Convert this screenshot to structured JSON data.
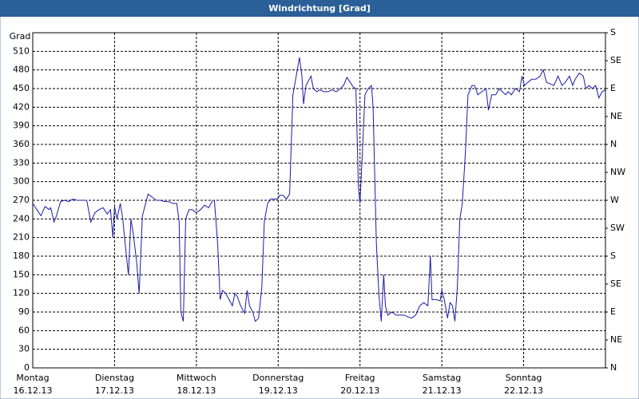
{
  "chart_data": {
    "type": "line",
    "title": "Windrichtung [Grad]",
    "ylabel": "Grad",
    "xlim": [
      0,
      7
    ],
    "xticks": [
      {
        "value": 0,
        "label": "Montag",
        "date": "16.12.13"
      },
      {
        "value": 1,
        "label": "Dienstag",
        "date": "17.12.13"
      },
      {
        "value": 2,
        "label": "Mittwoch",
        "date": "18.12.13"
      },
      {
        "value": 3,
        "label": "Donnerstag",
        "date": "19.12.13"
      },
      {
        "value": 4,
        "label": "Freitag",
        "date": "20.12.13"
      },
      {
        "value": 5,
        "label": "Samstag",
        "date": "21.12.13"
      },
      {
        "value": 6,
        "label": "Sonntag",
        "date": "22.12.13"
      }
    ],
    "ylim": [
      0,
      540
    ],
    "yticks": [
      0,
      30,
      60,
      90,
      120,
      150,
      180,
      210,
      240,
      270,
      300,
      330,
      360,
      390,
      420,
      450,
      480,
      510
    ],
    "y2lim": [
      0,
      540
    ],
    "y2ticks": [
      {
        "value": 0,
        "label": "N"
      },
      {
        "value": 45,
        "label": "NE"
      },
      {
        "value": 90,
        "label": "E"
      },
      {
        "value": 135,
        "label": "SE"
      },
      {
        "value": 180,
        "label": "S"
      },
      {
        "value": 225,
        "label": "SW"
      },
      {
        "value": 270,
        "label": "W"
      },
      {
        "value": 315,
        "label": "NW"
      },
      {
        "value": 360,
        "label": "N"
      },
      {
        "value": 405,
        "label": "NE"
      },
      {
        "value": 450,
        "label": "E"
      },
      {
        "value": 495,
        "label": "SE"
      },
      {
        "value": 540,
        "label": "S"
      }
    ],
    "grid": true,
    "x": [
      0,
      0.05,
      0.1,
      0.15,
      0.2,
      0.22,
      0.26,
      0.29,
      0.34,
      0.39,
      0.44,
      0.49,
      0.54,
      0.59,
      0.63,
      0.66,
      0.71,
      0.76,
      0.81,
      0.86,
      0.91,
      0.95,
      0.98,
      1.0,
      1.03,
      1.07,
      1.1,
      1.13,
      1.17,
      1.2,
      1.23,
      1.27,
      1.3,
      1.34,
      1.37,
      1.41,
      1.46,
      1.51,
      1.56,
      1.61,
      1.66,
      1.71,
      1.76,
      1.79,
      1.81,
      1.84,
      1.87,
      1.91,
      1.95,
      2.0,
      2.05,
      2.1,
      2.15,
      2.2,
      2.22,
      2.26,
      2.29,
      2.32,
      2.36,
      2.4,
      2.44,
      2.47,
      2.5,
      2.54,
      2.59,
      2.62,
      2.65,
      2.69,
      2.72,
      2.76,
      2.8,
      2.83,
      2.87,
      2.91,
      2.95,
      2.99,
      3.02,
      3.06,
      3.1,
      3.14,
      3.18,
      3.22,
      3.26,
      3.29,
      3.31,
      3.34,
      3.38,
      3.4,
      3.43,
      3.47,
      3.51,
      3.56,
      3.61,
      3.66,
      3.71,
      3.76,
      3.8,
      3.84,
      3.88,
      3.92,
      3.95,
      3.98,
      4.0,
      4.03,
      4.06,
      4.1,
      4.14,
      4.16,
      4.2,
      4.23,
      4.26,
      4.29,
      4.31,
      4.34,
      4.39,
      4.44,
      4.49,
      4.54,
      4.59,
      4.63,
      4.68,
      4.73,
      4.78,
      4.83,
      4.86,
      4.88,
      4.93,
      4.98,
      5.0,
      5.03,
      5.07,
      5.1,
      5.13,
      5.16,
      5.19,
      5.22,
      5.25,
      5.29,
      5.32,
      5.37,
      5.4,
      5.44,
      5.49,
      5.54,
      5.57,
      5.61,
      5.66,
      5.7,
      5.74,
      5.78,
      5.81,
      5.85,
      5.9,
      5.95,
      5.98,
      6.01,
      6.05,
      6.1,
      6.15,
      6.2,
      6.24,
      6.28,
      6.32,
      6.37,
      6.42,
      6.47,
      6.51,
      6.56,
      6.6,
      6.63,
      6.68,
      6.73,
      6.76,
      6.8,
      6.84,
      6.88,
      6.92,
      6.96,
      7.0
    ],
    "series": [
      {
        "name": "Windrichtung",
        "color": "#1a1aa8",
        "values": [
          265,
          255,
          245,
          260,
          255,
          258,
          235,
          245,
          268,
          270,
          268,
          272,
          270,
          270,
          270,
          270,
          235,
          250,
          255,
          258,
          248,
          255,
          210,
          260,
          240,
          265,
          240,
          200,
          150,
          240,
          215,
          170,
          120,
          245,
          260,
          280,
          275,
          270,
          270,
          268,
          268,
          265,
          265,
          235,
          90,
          75,
          240,
          255,
          255,
          250,
          255,
          262,
          258,
          270,
          270,
          200,
          110,
          125,
          120,
          110,
          100,
          120,
          115,
          100,
          88,
          125,
          100,
          90,
          75,
          80,
          130,
          235,
          265,
          272,
          272,
          272,
          278,
          278,
          272,
          280,
          440,
          470,
          500,
          470,
          425,
          455,
          465,
          470,
          450,
          445,
          448,
          445,
          445,
          448,
          445,
          450,
          455,
          468,
          460,
          452,
          450,
          290,
          265,
          350,
          440,
          450,
          455,
          420,
          200,
          120,
          75,
          150,
          100,
          85,
          90,
          85,
          85,
          85,
          82,
          80,
          85,
          100,
          105,
          100,
          180,
          110,
          110,
          108,
          125,
          110,
          80,
          105,
          100,
          75,
          130,
          240,
          265,
          350,
          440,
          455,
          455,
          440,
          445,
          450,
          415,
          440,
          440,
          450,
          445,
          440,
          445,
          440,
          450,
          445,
          470,
          455,
          460,
          465,
          465,
          470,
          480,
          460,
          458,
          455,
          470,
          455,
          460,
          470,
          455,
          465,
          475,
          470,
          450,
          455,
          450,
          455,
          435,
          445,
          448
        ]
      }
    ]
  }
}
